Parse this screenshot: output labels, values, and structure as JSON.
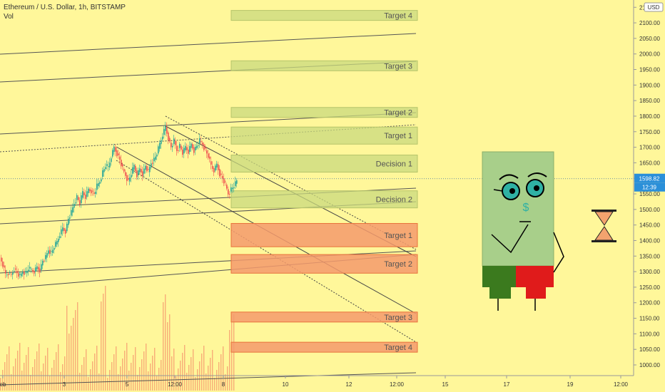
{
  "header": {
    "title": "Ethereum / U.S. Dollar, 1h, BITSTAMP",
    "indicator": "Vol",
    "currency": "USD"
  },
  "price_tag": {
    "value": "1598.82",
    "countdown": "12:39"
  },
  "colors": {
    "background": "#fff79a",
    "candle_up": "#26a69a",
    "candle_down": "#ef5350",
    "green_zone": "#c9d97e",
    "red_zone": "#f49a6c",
    "mascot_body": "#a8cf8a",
    "mascot_green": "#3b7a1e",
    "mascot_red": "#e01b1b",
    "hourglass": "#f3a36e"
  },
  "chart_data": {
    "type": "candlestick",
    "y_axis": {
      "range": [
        980,
        2160
      ],
      "ticks": [
        "1000.00",
        "1050.00",
        "1100.00",
        "1150.00",
        "1200.00",
        "1250.00",
        "1300.00",
        "1350.00",
        "1400.00",
        "1450.00",
        "1500.00",
        "1550.00",
        "1600.00",
        "1650.00",
        "1700.00",
        "1750.00",
        "1800.00",
        "1850.00",
        "1900.00",
        "1950.00",
        "2000.00",
        "2050.00",
        "2100.00",
        "2150.00"
      ]
    },
    "x_axis": {
      "ticks": [
        "eb",
        "3",
        "5",
        "12:00",
        "8",
        "10",
        "12",
        "12:00",
        "15",
        "17",
        "19",
        "12:00"
      ]
    },
    "price_path": [
      [
        0,
        1345
      ],
      [
        4,
        1320
      ],
      [
        8,
        1290
      ],
      [
        12,
        1295
      ],
      [
        16,
        1290
      ],
      [
        20,
        1310
      ],
      [
        24,
        1295
      ],
      [
        28,
        1285
      ],
      [
        32,
        1300
      ],
      [
        36,
        1295
      ],
      [
        40,
        1310
      ],
      [
        44,
        1305
      ],
      [
        48,
        1300
      ],
      [
        52,
        1315
      ],
      [
        56,
        1305
      ],
      [
        60,
        1335
      ],
      [
        64,
        1345
      ],
      [
        68,
        1370
      ],
      [
        72,
        1360
      ],
      [
        76,
        1380
      ],
      [
        80,
        1395
      ],
      [
        84,
        1420
      ],
      [
        88,
        1440
      ],
      [
        92,
        1430
      ],
      [
        96,
        1470
      ],
      [
        100,
        1490
      ],
      [
        104,
        1520
      ],
      [
        108,
        1540
      ],
      [
        112,
        1520
      ],
      [
        116,
        1555
      ],
      [
        120,
        1540
      ],
      [
        124,
        1565
      ],
      [
        128,
        1560
      ],
      [
        132,
        1550
      ],
      [
        136,
        1575
      ],
      [
        140,
        1590
      ],
      [
        144,
        1620
      ],
      [
        148,
        1640
      ],
      [
        152,
        1635
      ],
      [
        156,
        1670
      ],
      [
        160,
        1700
      ],
      [
        164,
        1680
      ],
      [
        168,
        1660
      ],
      [
        172,
        1630
      ],
      [
        176,
        1610
      ],
      [
        180,
        1590
      ],
      [
        184,
        1615
      ],
      [
        188,
        1640
      ],
      [
        192,
        1610
      ],
      [
        196,
        1630
      ],
      [
        200,
        1615
      ],
      [
        204,
        1640
      ],
      [
        208,
        1620
      ],
      [
        212,
        1650
      ],
      [
        216,
        1660
      ],
      [
        220,
        1680
      ],
      [
        224,
        1710
      ],
      [
        228,
        1740
      ],
      [
        232,
        1765
      ],
      [
        236,
        1730
      ],
      [
        240,
        1700
      ],
      [
        244,
        1720
      ],
      [
        248,
        1690
      ],
      [
        252,
        1705
      ],
      [
        256,
        1680
      ],
      [
        260,
        1700
      ],
      [
        264,
        1685
      ],
      [
        268,
        1710
      ],
      [
        272,
        1690
      ],
      [
        276,
        1705
      ],
      [
        280,
        1720
      ],
      [
        284,
        1710
      ],
      [
        288,
        1690
      ],
      [
        292,
        1670
      ],
      [
        296,
        1640
      ],
      [
        300,
        1625
      ],
      [
        304,
        1645
      ],
      [
        308,
        1615
      ],
      [
        312,
        1600
      ],
      [
        316,
        1580
      ],
      [
        320,
        1550
      ],
      [
        324,
        1565
      ],
      [
        328,
        1575
      ],
      [
        332,
        1590
      ]
    ],
    "target_zones": [
      {
        "label": "Target 4",
        "kind": "green",
        "low": 2115,
        "high": 2140
      },
      {
        "label": "Target 3",
        "kind": "green",
        "low": 1962,
        "high": 1978
      },
      {
        "label": "Target 2",
        "kind": "green",
        "low": 1810,
        "high": 1828
      },
      {
        "label": "Target 1",
        "kind": "green",
        "low": 1710,
        "high": 1765
      },
      {
        "label": "Decision 1",
        "kind": "green",
        "low": 1620,
        "high": 1675
      },
      {
        "label": "Decision 2",
        "kind": "green",
        "low": 1505,
        "high": 1560
      },
      {
        "label": "Target 1",
        "kind": "red",
        "low": 1380,
        "high": 1455
      },
      {
        "label": "Target 2",
        "kind": "red",
        "low": 1295,
        "high": 1355
      },
      {
        "label": "Target 3",
        "kind": "red",
        "low": 1150,
        "high": 1170
      },
      {
        "label": "Target 4",
        "kind": "red",
        "low": 1045,
        "high": 1073
      }
    ]
  }
}
